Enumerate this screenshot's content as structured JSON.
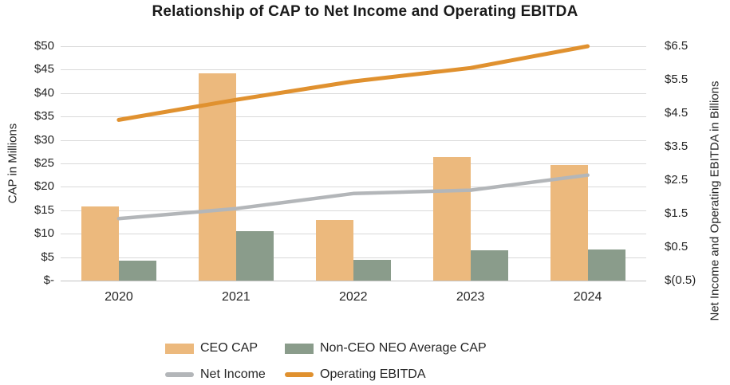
{
  "title": "Relationship of CAP to Net Income and Operating EBITDA",
  "chart_data": {
    "type": "combo-bar-line",
    "categories": [
      "2020",
      "2021",
      "2022",
      "2023",
      "2024"
    ],
    "series": [
      {
        "name": "CEO CAP",
        "type": "bar",
        "axis": "left",
        "color": "#ECB97D",
        "values": [
          15.8,
          44.2,
          13.0,
          26.4,
          24.6
        ]
      },
      {
        "name": "Non-CEO NEO Average CAP",
        "type": "bar",
        "axis": "left",
        "color": "#8A9C8B",
        "values": [
          4.3,
          10.6,
          4.5,
          6.5,
          6.7
        ]
      },
      {
        "name": "Net Income",
        "type": "line",
        "axis": "right",
        "color": "#B3B6B9",
        "values": [
          1.35,
          1.65,
          2.1,
          2.2,
          2.65
        ]
      },
      {
        "name": "Operating EBITDA",
        "type": "line",
        "axis": "right",
        "color": "#E0912F",
        "values": [
          4.3,
          4.9,
          5.45,
          5.85,
          6.5
        ]
      }
    ],
    "left_axis": {
      "title": "CAP in Millions",
      "min": 0,
      "max": 50,
      "tick_step": 5,
      "tick_labels": [
        "$50",
        "$45",
        "$40",
        "$35",
        "$30",
        "$25",
        "$20",
        "$15",
        "$10",
        "$5",
        "$-"
      ]
    },
    "right_axis": {
      "title": "Net Income and Operating EBITDA in Billions",
      "min": -0.5,
      "max": 6.5,
      "tick_step": 1,
      "tick_labels": [
        "$6.5",
        "$5.5",
        "$4.5",
        "$3.5",
        "$2.5",
        "$1.5",
        "$0.5",
        "$(0.5)"
      ]
    },
    "grid": true,
    "legend_position": "bottom"
  },
  "legend": {
    "rows": [
      [
        {
          "label": "CEO CAP",
          "swatch": "bar",
          "color": "#ECB97D"
        },
        {
          "label": "Non-CEO NEO Average CAP",
          "swatch": "bar",
          "color": "#8A9C8B"
        }
      ],
      [
        {
          "label": "Net Income",
          "swatch": "line",
          "color": "#B3B6B9"
        },
        {
          "label": "Operating EBITDA",
          "swatch": "line",
          "color": "#E0912F"
        }
      ]
    ]
  },
  "colors": {
    "background": "#FFFFFF",
    "gridline": "#D9D9D9",
    "axis_line": "#C3C3C3",
    "text": "#262626",
    "title_text": "#1A1A1A"
  }
}
